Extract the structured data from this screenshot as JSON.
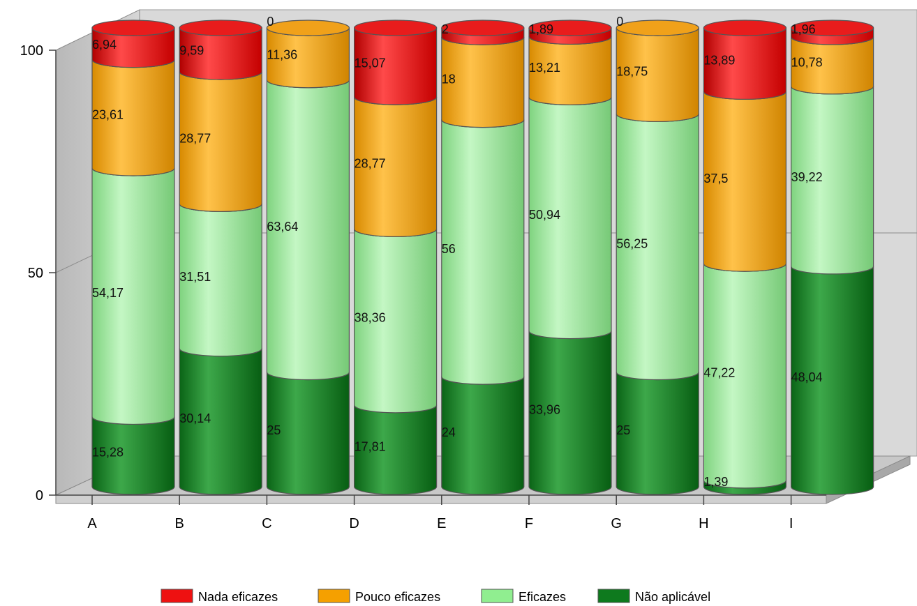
{
  "chart_data": {
    "type": "bar",
    "stacked": true,
    "style": "3d-cylinder",
    "categories": [
      "A",
      "B",
      "C",
      "D",
      "E",
      "F",
      "G",
      "H",
      "I"
    ],
    "series": [
      {
        "name": "Não aplicável",
        "color": "#0e7a1e",
        "values": [
          15.28,
          30.14,
          25,
          17.81,
          24,
          33.96,
          25,
          1.39,
          48.04
        ],
        "labels": [
          "15,28",
          "30,14",
          "25",
          "17,81",
          "24",
          "33,96",
          "25",
          "1,39",
          "48,04"
        ]
      },
      {
        "name": "Eficazes",
        "color": "#90ee90",
        "values": [
          54.17,
          31.51,
          63.64,
          38.36,
          56,
          50.94,
          56.25,
          47.22,
          39.22
        ],
        "labels": [
          "54,17",
          "31,51",
          "63,64",
          "38,36",
          "56",
          "50,94",
          "56,25",
          "47,22",
          "39,22"
        ]
      },
      {
        "name": "Pouco eficazes",
        "color": "#f5a000",
        "values": [
          23.61,
          28.77,
          11.36,
          28.77,
          18,
          13.21,
          18.75,
          37.5,
          10.78
        ],
        "labels": [
          "23,61",
          "28,77",
          "11,36",
          "28,77",
          "18",
          "13,21",
          "18,75",
          "37,5",
          "10,78"
        ]
      },
      {
        "name": "Nada eficazes",
        "color": "#ee1111",
        "values": [
          6.94,
          9.59,
          0,
          15.07,
          2,
          1.89,
          0,
          13.89,
          1.96
        ],
        "labels": [
          "6,94",
          "9,59",
          "0",
          "15,07",
          "2",
          "1,89",
          "0",
          "13,89",
          "1,96"
        ]
      }
    ],
    "legend": [
      "Nada eficazes",
      "Pouco eficazes",
      "Eficazes",
      "Não aplicável"
    ],
    "legend_colors": [
      "#ee1111",
      "#f5a000",
      "#90ee90",
      "#0e7a1e"
    ],
    "yticks": [
      "0",
      "50",
      "100"
    ],
    "ylim": [
      0,
      100
    ],
    "legend_position": "bottom",
    "grid": true
  }
}
